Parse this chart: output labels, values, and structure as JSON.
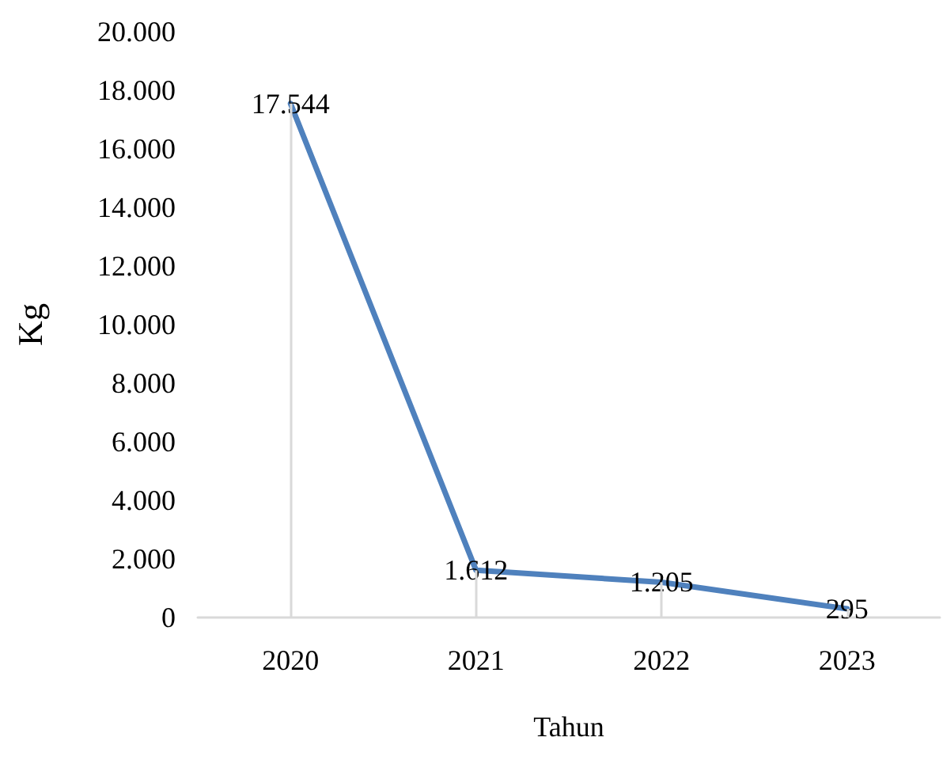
{
  "chart_data": {
    "type": "line",
    "xlabel": "Tahun",
    "ylabel": "Kg",
    "categories": [
      "2020",
      "2021",
      "2022",
      "2023"
    ],
    "series": [
      {
        "color": "#4f81bd",
        "values": [
          17544,
          1612,
          1205,
          295
        ],
        "value_labels": [
          "17.544",
          "1.612",
          "1.205",
          "295"
        ]
      }
    ],
    "ylim": [
      0,
      20000
    ],
    "yticks": [
      {
        "value": 0,
        "label": "0"
      },
      {
        "value": 2000,
        "label": "2.000"
      },
      {
        "value": 4000,
        "label": "4.000"
      },
      {
        "value": 6000,
        "label": "6.000"
      },
      {
        "value": 8000,
        "label": "8.000"
      },
      {
        "value": 10000,
        "label": "10.000"
      },
      {
        "value": 12000,
        "label": "12.000"
      },
      {
        "value": 14000,
        "label": "14.000"
      },
      {
        "value": 16000,
        "label": "16.000"
      },
      {
        "value": 18000,
        "label": "18.000"
      },
      {
        "value": 20000,
        "label": "20.000"
      }
    ],
    "grid": "x",
    "marker": "none",
    "line_style": "solid"
  }
}
